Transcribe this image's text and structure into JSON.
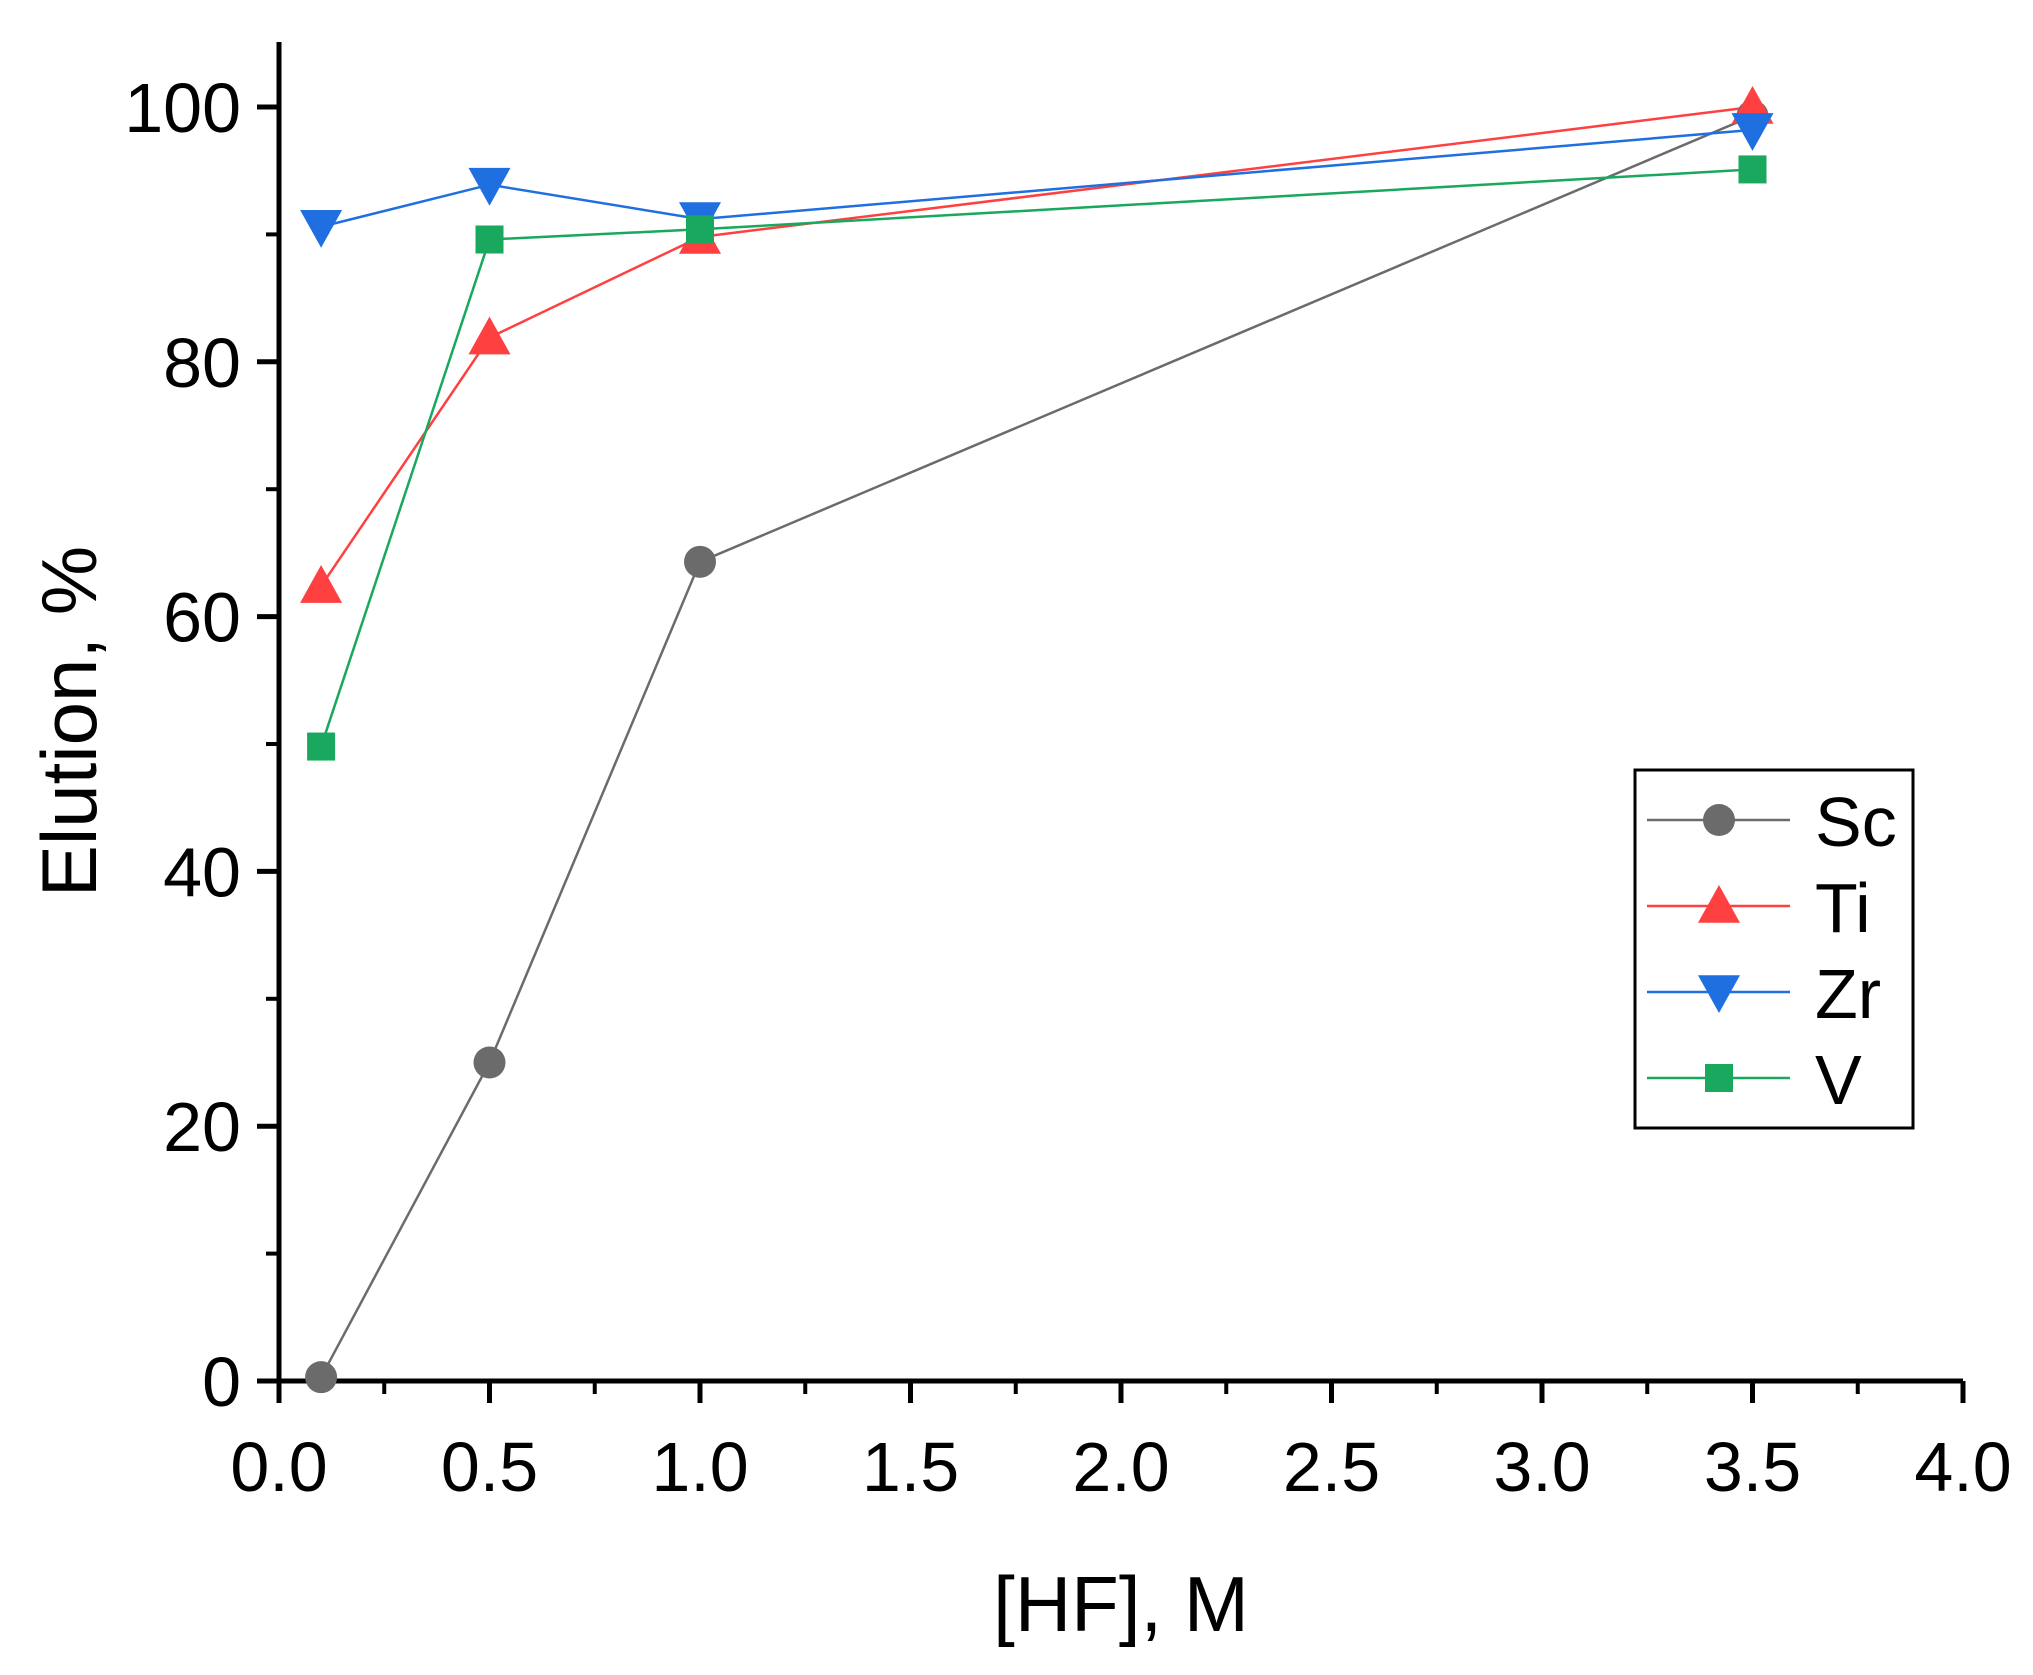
{
  "chart_data": {
    "type": "line",
    "xlabel": "[HF], M",
    "ylabel": "Elution, %",
    "xlim": [
      0.0,
      4.0
    ],
    "ylim": [
      0,
      105
    ],
    "x_ticks": [
      "0.0",
      "0.5",
      "1.0",
      "1.5",
      "2.0",
      "2.5",
      "3.0",
      "3.5",
      "4.0"
    ],
    "x_tick_values": [
      0.0,
      0.5,
      1.0,
      1.5,
      2.0,
      2.5,
      3.0,
      3.5,
      4.0
    ],
    "y_ticks": [
      "0",
      "20",
      "40",
      "60",
      "80",
      "100"
    ],
    "y_tick_values": [
      0,
      20,
      40,
      60,
      80,
      100
    ],
    "legend_position": "right-middle",
    "series": [
      {
        "name": "Sc",
        "color": "#6b6b6b",
        "marker": "circle",
        "x": [
          0.1,
          0.5,
          1.0,
          3.5
        ],
        "y": [
          0.3,
          25.0,
          64.3,
          99.3
        ]
      },
      {
        "name": "Ti",
        "color": "#ff4040",
        "marker": "triangle-up",
        "x": [
          0.1,
          0.5,
          1.0,
          3.5
        ],
        "y": [
          62.4,
          81.9,
          89.8,
          100.0
        ]
      },
      {
        "name": "Zr",
        "color": "#1f6fe0",
        "marker": "triangle-down",
        "x": [
          0.1,
          0.5,
          1.0,
          3.5
        ],
        "y": [
          90.6,
          93.9,
          91.2,
          98.2
        ]
      },
      {
        "name": "V",
        "color": "#19a85d",
        "marker": "square",
        "x": [
          0.1,
          0.5,
          1.0,
          3.5
        ],
        "y": [
          49.8,
          89.6,
          90.4,
          95.1
        ]
      }
    ]
  }
}
